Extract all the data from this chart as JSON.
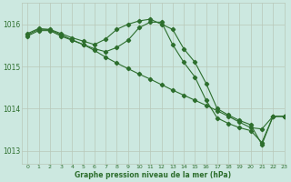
{
  "bg_color": "#cce8e0",
  "line_color": "#2d6e2d",
  "grid_color": "#b8c8b8",
  "xlabel": "Graphe pression niveau de la mer (hPa)",
  "xlabel_color": "#2d6e2d",
  "ylim": [
    1012.7,
    1016.5
  ],
  "xlim": [
    -0.5,
    23
  ],
  "yticks": [
    1013,
    1014,
    1015,
    1016
  ],
  "xticks": [
    0,
    1,
    2,
    3,
    4,
    5,
    6,
    7,
    8,
    9,
    10,
    11,
    12,
    13,
    14,
    15,
    16,
    17,
    18,
    19,
    20,
    21,
    22,
    23
  ],
  "series1": {
    "x": [
      0,
      1,
      2,
      3,
      4,
      5,
      6,
      7,
      8,
      9,
      10,
      11,
      12,
      13,
      14,
      15,
      16,
      17,
      18,
      19,
      20,
      21,
      22,
      23
    ],
    "y": [
      1015.75,
      1015.88,
      1015.88,
      1015.78,
      1015.68,
      1015.6,
      1015.52,
      1015.65,
      1015.88,
      1016.0,
      1016.08,
      1016.12,
      1016.0,
      1015.88,
      1015.42,
      1015.1,
      1014.6,
      1014.0,
      1013.85,
      1013.72,
      1013.62,
      1013.15,
      1013.82,
      1013.82
    ]
  },
  "series2": {
    "x": [
      0,
      1,
      2,
      3,
      4,
      5,
      6,
      7,
      8,
      9,
      10,
      11,
      12,
      13,
      14,
      15,
      16,
      17,
      18,
      19,
      20,
      21,
      22,
      23
    ],
    "y": [
      1015.72,
      1015.85,
      1015.85,
      1015.72,
      1015.62,
      1015.52,
      1015.42,
      1015.35,
      1015.45,
      1015.62,
      1015.92,
      1016.05,
      1016.05,
      1015.52,
      1015.1,
      1014.75,
      1014.2,
      1013.78,
      1013.65,
      1013.55,
      1013.48,
      1013.2,
      1013.82,
      1013.82
    ]
  },
  "series3": {
    "x": [
      0,
      1,
      2,
      3,
      4,
      5,
      6,
      7,
      8,
      9,
      10,
      11,
      12,
      13,
      14,
      15,
      16,
      17,
      18,
      19,
      20,
      21,
      22,
      23
    ],
    "y": [
      1015.78,
      1015.9,
      1015.87,
      1015.75,
      1015.63,
      1015.52,
      1015.38,
      1015.22,
      1015.08,
      1014.95,
      1014.82,
      1014.7,
      1014.57,
      1014.44,
      1014.32,
      1014.2,
      1014.08,
      1013.95,
      1013.82,
      1013.68,
      1013.55,
      1013.52,
      1013.82,
      1013.82
    ]
  }
}
